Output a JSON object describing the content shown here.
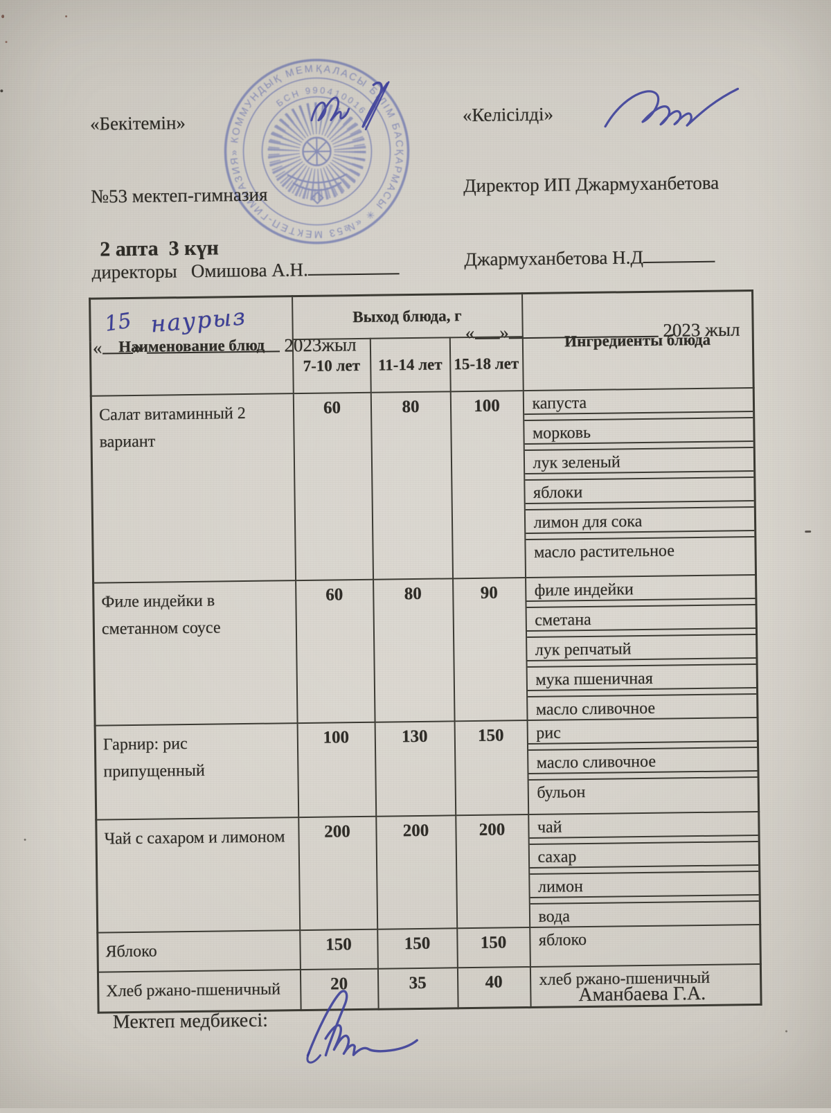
{
  "document": {
    "approve": {
      "title": "«Бекітемін»",
      "org": "№53 мектеп-гимназия",
      "role_line": "директоры   Омишова А.Н.",
      "quote_open": "«",
      "quote_close": "»",
      "day": "15",
      "month": "наурыз",
      "year": "2023жыл"
    },
    "agree": {
      "title": "«Келісілді»",
      "line2": "Директор ИП Джармуханбетова",
      "name_line": "Джармуханбетова Н.Д",
      "quote_open": "«",
      "quote_close": "»",
      "year": "2023 жыл"
    },
    "week_line": "2 апта  3 күн",
    "stamp": {
      "ring_text": "ҚАЛАСЫ БІЛІМ БАСҚАРМАСЫ ✳ «№53 МЕКТЕП-ГИМНАЗИЯ» КОММУНДЫҚ МЕМЛЕКЕТТІК МЕКЕМЕСІ",
      "bin_text": "БСН 990410016"
    },
    "footer": {
      "label": "Мектеп медбикесі:",
      "name": "Аманбаева Г.А."
    }
  },
  "table": {
    "headers": {
      "name": "Наименование блюд",
      "output_group": "Выход блюда, г",
      "age_groups": [
        "7-10 лет",
        "11-14 лет",
        "15-18 лет"
      ],
      "ingredients": "Ингредиенты блюда"
    },
    "rows": [
      {
        "dish": "Салат витаминный 2 вариант",
        "portions": [
          "60",
          "80",
          "100"
        ],
        "ingredients": [
          "капуста",
          "морковь",
          "лук зеленый",
          "яблоки",
          "лимон для сока",
          "масло растительное"
        ]
      },
      {
        "dish": "Филе индейки в сметанном соусе",
        "portions": [
          "60",
          "80",
          "90"
        ],
        "ingredients": [
          "филе индейки",
          "сметана",
          "лук репчатый",
          "мука пшеничная",
          "масло сливочное"
        ]
      },
      {
        "dish": "Гарнир: рис припущенный",
        "portions": [
          "100",
          "130",
          "150"
        ],
        "ingredients": [
          "рис",
          "масло сливочное",
          "бульон"
        ]
      },
      {
        "dish": "Чай с сахаром и лимоном",
        "portions": [
          "200",
          "200",
          "200"
        ],
        "ingredients": [
          "чай",
          "сахар",
          "лимон",
          "вода"
        ]
      },
      {
        "dish": "Яблоко",
        "portions": [
          "150",
          "150",
          "150"
        ],
        "ingredients": [
          "яблоко"
        ]
      },
      {
        "dish": "Хлеб ржано-пшеничный",
        "portions": [
          "20",
          "35",
          "40"
        ],
        "ingredients": [
          "хлеб ржано-пшеничный"
        ]
      }
    ]
  },
  "colors": {
    "paper": "#d3cfc7",
    "ink": "#2e2c27",
    "table_line": "#3b3a33",
    "stamp_blue": "#5864ab",
    "pen_blue": "#3c3f9b"
  }
}
